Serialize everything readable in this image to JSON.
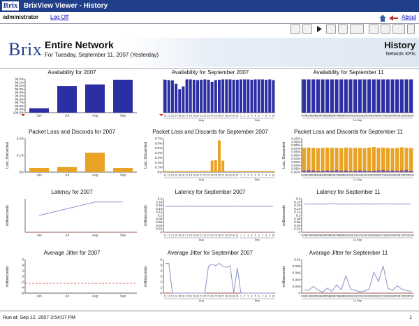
{
  "window": {
    "title": "BrixView Viewer - History",
    "logo": "Brix"
  },
  "userbar": {
    "user": "administrator",
    "logoff": "Log Off",
    "about": "About"
  },
  "toolbar_icons": [
    "email-icon",
    "edit-icon",
    "play-icon",
    "copy-icon",
    "paste-icon",
    "export-icon",
    "print-icon",
    "save-icon",
    "list-icon",
    "minimize-icon"
  ],
  "header": {
    "brand": "Brix",
    "title": "Entire Network",
    "subtitle": "For Tuesday, September 11, 2007 (Yesterday)",
    "right_title": "History",
    "right_sub": "Network KPIs"
  },
  "colors": {
    "blue": "#2b2fa3",
    "orange": "#e8a325",
    "purple": "#7b4ea0",
    "red": "#d93a3a",
    "line": "#8c91c9"
  },
  "footer": {
    "run_at": "Run at: Sep 12, 2007 3:54:07 PM",
    "page": "1"
  },
  "chart_data": [
    {
      "id": "avail-2007",
      "type": "bar",
      "title": "Availability for 2007",
      "ylabel": "",
      "ylim": [
        99.0,
        100.0
      ],
      "yticks": [
        "99.0%",
        "99.1%",
        "99.2%",
        "99.3%",
        "99.4%",
        "99.5%",
        "99.6%",
        "99.7%",
        "99.8%",
        "99.9%",
        "100.0%"
      ],
      "categories": [
        "Jun",
        "Jul",
        "Aug",
        "Sep"
      ],
      "xlabels": [
        "Jun",
        "Jul",
        "Aug",
        "Sep"
      ],
      "series": [
        {
          "values": [
            99.13,
            99.79,
            99.84,
            99.98
          ],
          "color": "#2b2fa3"
        }
      ],
      "annot": "triangle"
    },
    {
      "id": "avail-sep",
      "type": "bar",
      "title": "Availability for September 2007",
      "ylabel": "",
      "ylim": [
        0.0,
        1.0
      ],
      "xlabels": [
        "11",
        "12",
        "13",
        "14",
        "15",
        "16",
        "17",
        "18",
        "19",
        "20",
        "21",
        "22",
        "23",
        "24",
        "25",
        "26",
        "27",
        "28",
        "29",
        "30",
        "31",
        "1",
        "2",
        "3",
        "4",
        "5",
        "6",
        "7",
        "8",
        "9",
        "10"
      ],
      "groups": [
        "Aug",
        "Sep"
      ],
      "series": [
        {
          "values": [
            0.98,
            0.97,
            0.96,
            0.86,
            0.7,
            0.78,
            0.99,
            0.99,
            0.98,
            0.97,
            0.98,
            0.99,
            0.98,
            0.92,
            0.97,
            0.98,
            0.99,
            0.99,
            0.99,
            0.98,
            0.98,
            0.99,
            0.99,
            0.99,
            0.98,
            0.99,
            0.99,
            0.99,
            0.98,
            0.99,
            0.97
          ],
          "color": "#2b2fa3"
        }
      ],
      "annot": "triangle"
    },
    {
      "id": "avail-sep11",
      "type": "bar",
      "title": "Availability for September 11",
      "ylabel": "",
      "ylim": [
        0.0,
        1.0
      ],
      "xlabels": [
        "0000",
        "0100",
        "0200",
        "0300",
        "0400",
        "0500",
        "0600",
        "0700",
        "0800",
        "0900",
        "1000",
        "1100",
        "1200",
        "1300",
        "1400",
        "1500",
        "1600",
        "1700",
        "1800",
        "1900",
        "2000",
        "2100",
        "2200",
        "2300"
      ],
      "groups": [
        "11-Sep"
      ],
      "series": [
        {
          "values": [
            0.99,
            0.99,
            0.99,
            0.99,
            0.99,
            0.99,
            0.99,
            0.99,
            0.99,
            0.99,
            0.99,
            0.99,
            0.99,
            0.99,
            0.99,
            0.99,
            0.99,
            0.99,
            0.99,
            0.99,
            0.99,
            0.99,
            0.99,
            0.99
          ],
          "color": "#2b2fa3"
        }
      ],
      "annot": "none"
    },
    {
      "id": "pl-2007",
      "type": "bar",
      "title": "Packet Loss and Discards for 2007",
      "ylabel": "Lost, Discarded",
      "ylim": [
        0,
        0.2
      ],
      "yticks": [
        "0.2%",
        "0.1%",
        "0%"
      ],
      "categories": [
        "Jun",
        "Jul",
        "Aug",
        "Sep"
      ],
      "xlabels": [
        "Jun",
        "Jul",
        "Aug",
        "Sep"
      ],
      "series": [
        {
          "values": [
            0.025,
            0.03,
            0.115,
            0.025
          ],
          "color": "#e8a325"
        }
      ],
      "annot": "none"
    },
    {
      "id": "pl-sep",
      "type": "bar",
      "title": "Packet Loss and Discards for September 2007",
      "ylabel": "Lost, Discarded",
      "ylim": [
        0,
        0.7
      ],
      "yticks": [
        "0.7%",
        "0.6%",
        "0.5%",
        "0.4%",
        "0.3%",
        "0.2%",
        "0.1%",
        "0%"
      ],
      "xlabels": [
        "11",
        "12",
        "13",
        "14",
        "15",
        "16",
        "17",
        "18",
        "19",
        "20",
        "21",
        "22",
        "23",
        "24",
        "25",
        "26",
        "27",
        "28",
        "29",
        "30",
        "31",
        "1",
        "2",
        "3",
        "4",
        "5",
        "6",
        "7",
        "8",
        "9",
        "10"
      ],
      "groups": [
        "Aug",
        "Sep"
      ],
      "series": [
        {
          "values": [
            0.02,
            0.02,
            0.02,
            0.02,
            0.02,
            0.02,
            0.02,
            0.02,
            0.02,
            0.02,
            0.02,
            0.02,
            0.02,
            0.24,
            0.25,
            0.66,
            0.24,
            0.02,
            0.02,
            0.02,
            0.02,
            0.02,
            0.02,
            0.02,
            0.02,
            0.02,
            0.02,
            0.02,
            0.02,
            0.02,
            0.02
          ],
          "color": "#e8a325"
        }
      ],
      "annot": "none"
    },
    {
      "id": "pl-sep11",
      "type": "bar",
      "title": "Packet Loss and Discards for September 11",
      "ylabel": "Lost, Discarded",
      "ylim": [
        0,
        0.1
      ],
      "yticks": [
        "0.10%",
        "0.09%",
        "0.08%",
        "0.07%",
        "0.06%",
        "0.05%",
        "0.04%",
        "0.03%",
        "0.02%",
        "0.01%",
        "0.00%"
      ],
      "xlabels": [
        "0000",
        "0100",
        "0200",
        "0300",
        "0400",
        "0500",
        "0600",
        "0700",
        "0800",
        "0900",
        "1000",
        "1100",
        "1200",
        "1300",
        "1400",
        "1500",
        "1600",
        "1700",
        "1800",
        "1900",
        "2000",
        "2100",
        "2200",
        "2300"
      ],
      "groups": [
        "11-Sep"
      ],
      "series": [
        {
          "values": [
            0.072,
            0.073,
            0.072,
            0.071,
            0.072,
            0.073,
            0.072,
            0.072,
            0.071,
            0.073,
            0.072,
            0.072,
            0.072,
            0.071,
            0.073,
            0.075,
            0.072,
            0.073,
            0.072,
            0.071,
            0.072,
            0.074,
            0.072,
            0.072
          ],
          "color": "#e8a325"
        },
        {
          "values": [
            0.004,
            0.006,
            0.005,
            0.003,
            0.004,
            0.005,
            0.004,
            0.006,
            0.004,
            0.005,
            0.003,
            0.004,
            0.005,
            0.004,
            0.003,
            0.004,
            0.005,
            0.006,
            0.004,
            0.005,
            0.004,
            0.005,
            0.006,
            0.004
          ],
          "color": "#7b4ea0"
        }
      ],
      "annot": "none"
    },
    {
      "id": "lat-2007",
      "type": "line",
      "title": "Latency for 2007",
      "ylabel": "milliseconds",
      "ylim": [
        0,
        1
      ],
      "yticks": [],
      "xlabels": [
        "Jun",
        "Jul",
        "Aug",
        "Sep"
      ],
      "series": [
        {
          "values": [
            0.5,
            0.7,
            0.9,
            0.9
          ],
          "color": "#8c91c9"
        }
      ],
      "dashed": 0.0
    },
    {
      "id": "lat-sep",
      "type": "line",
      "title": "Latency for September 2007",
      "ylabel": "milliseconds",
      "ylim": [
        0,
        0.22
      ],
      "yticks": [
        "0.2",
        "0.18",
        "0.16",
        "0.14",
        "0.12",
        "0.1",
        "0.08",
        "0.06",
        "0.04",
        "0.02",
        "0"
      ],
      "xlabels": [
        "11",
        "12",
        "13",
        "14",
        "15",
        "16",
        "17",
        "18",
        "19",
        "20",
        "21",
        "22",
        "23",
        "24",
        "25",
        "26",
        "27",
        "28",
        "29",
        "30",
        "31",
        "1",
        "2",
        "3",
        "4",
        "5",
        "6",
        "7",
        "8",
        "9",
        "10"
      ],
      "groups": [
        "Aug",
        "Sep"
      ],
      "series": [
        {
          "values": [
            0.17,
            0.17,
            0.17,
            0.17,
            0.17,
            0.17,
            0.17,
            0.172,
            0.17,
            0.17,
            0.17,
            0.17,
            0.17,
            0.17,
            0.17,
            0.17,
            0.17,
            0.17,
            0.17,
            0.17,
            0.172,
            0.17,
            0.17,
            0.17,
            0.17,
            0.17,
            0.17,
            0.17,
            0.17,
            0.17,
            0.17
          ],
          "color": "#8c91c9"
        }
      ],
      "dashed": 0.0
    },
    {
      "id": "lat-sep11",
      "type": "line",
      "title": "Latency for September 11",
      "ylabel": "milliseconds",
      "ylim": [
        0,
        0.2
      ],
      "yticks": [
        "0.2",
        "0.18",
        "0.16",
        "0.14",
        "0.12",
        "0.1",
        "0.08",
        "0.06",
        "0.04",
        "0.02",
        "0"
      ],
      "xlabels": [
        "0000",
        "0100",
        "0200",
        "0300",
        "0400",
        "0500",
        "0600",
        "0700",
        "0800",
        "0900",
        "1000",
        "1100",
        "1200",
        "1300",
        "1400",
        "1500",
        "1600",
        "1700",
        "1800",
        "1900",
        "2000",
        "2100",
        "2200",
        "2300"
      ],
      "groups": [
        "11-Sep"
      ],
      "series": [
        {
          "values": [
            0.168,
            0.168,
            0.168,
            0.169,
            0.168,
            0.168,
            0.17,
            0.168,
            0.168,
            0.169,
            0.168,
            0.168,
            0.168,
            0.169,
            0.168,
            0.168,
            0.168,
            0.17,
            0.168,
            0.168,
            0.168,
            0.169,
            0.168,
            0.168
          ],
          "color": "#8c91c9"
        }
      ],
      "dashed": 0.0
    },
    {
      "id": "jit-2007",
      "type": "line",
      "title": "Average Jitter for 2007",
      "ylabel": "milliseconds",
      "ylim": [
        -6,
        6
      ],
      "yticks": [
        "6",
        "4",
        "2",
        "0",
        "-2",
        "-4",
        "-6"
      ],
      "xlabels": [
        "Jun",
        "Jul",
        "Aug",
        "Sep"
      ],
      "series": [],
      "dashed": -2.5
    },
    {
      "id": "jit-sep",
      "type": "line",
      "title": "Average Jitter for September 2007",
      "ylabel": "milliseconds",
      "ylim": [
        0,
        6
      ],
      "yticks": [
        "6",
        "5",
        "4",
        "3",
        "2",
        "1",
        "0"
      ],
      "xlabels": [
        "11",
        "12",
        "13",
        "14",
        "15",
        "16",
        "17",
        "18",
        "19",
        "20",
        "21",
        "22",
        "23",
        "24",
        "25",
        "26",
        "27",
        "28",
        "29",
        "30",
        "31",
        "1",
        "2",
        "3",
        "4",
        "5",
        "6",
        "7",
        "8",
        "9",
        "10"
      ],
      "groups": [
        "Aug",
        "Sep"
      ],
      "series": [
        {
          "values": [
            5.3,
            5.3,
            0,
            0,
            0,
            0,
            0,
            0,
            0,
            0,
            0,
            0,
            4.8,
            5.2,
            4.9,
            5.3,
            4.8,
            4.6,
            4.9,
            0,
            4.5,
            0,
            0,
            0,
            0,
            0,
            0,
            0,
            0,
            0,
            0
          ],
          "color": "#8c91c9"
        }
      ],
      "dashed": 0.0
    },
    {
      "id": "jit-sep11",
      "type": "line",
      "title": "Average Jitter for September 11",
      "ylabel": "milliseconds",
      "ylim": [
        0,
        0.01
      ],
      "yticks": [
        "0.01",
        "0.008",
        "0.006",
        "0.004",
        "0.002",
        "0"
      ],
      "xlabels": [
        "0000",
        "0100",
        "0200",
        "0300",
        "0400",
        "0500",
        "0600",
        "0700",
        "0800",
        "0900",
        "1000",
        "1100",
        "1200",
        "1300",
        "1400",
        "1500",
        "1600",
        "1700",
        "1800",
        "1900",
        "2000",
        "2100",
        "2200",
        "2300"
      ],
      "groups": [
        "11-Sep"
      ],
      "series": [
        {
          "values": [
            0.001,
            0.0008,
            0.002,
            0.0009,
            0.0003,
            0.0015,
            0.0005,
            0.0025,
            0.001,
            0.0052,
            0.0012,
            0.0008,
            0.0004,
            0.0006,
            0.0012,
            0.0062,
            0.0035,
            0.0081,
            0.0015,
            0.0008,
            0.0022,
            0.0012,
            0.0008,
            0.0005
          ],
          "color": "#8c91c9"
        }
      ],
      "dashed": 0.0
    }
  ]
}
